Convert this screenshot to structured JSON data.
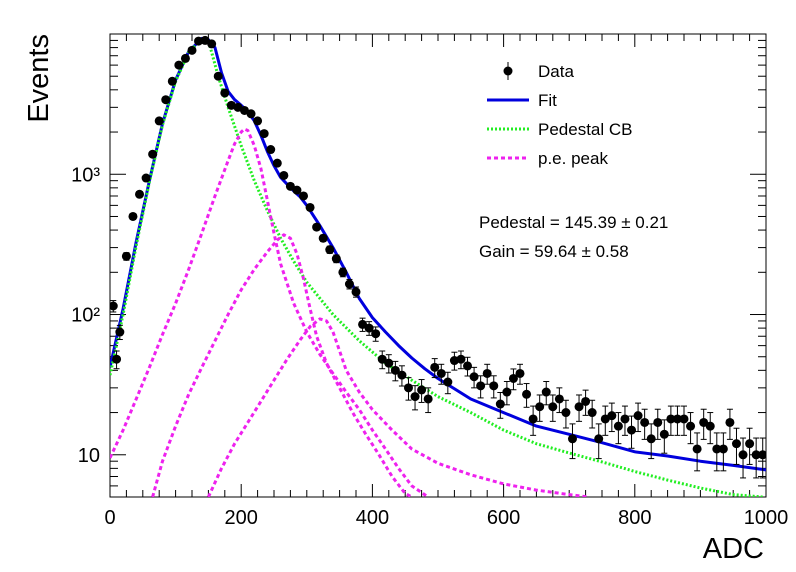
{
  "chart_data": {
    "type": "scatter",
    "xlabel": "ADC",
    "ylabel": "Events",
    "xlim": [
      0,
      1000
    ],
    "ylim": [
      5,
      10000
    ],
    "yscale": "log",
    "x_ticks": [
      "0",
      "200",
      "400",
      "600",
      "800",
      "1000"
    ],
    "y_ticks": [
      {
        "value": 10,
        "label": "10"
      },
      {
        "value": 100,
        "label": "10²"
      },
      {
        "value": 1000,
        "label": "10³"
      }
    ],
    "grid": false,
    "legend": {
      "position": "top-right",
      "entries": [
        {
          "label": "Data",
          "kind": "marker",
          "color": "#000000"
        },
        {
          "label": "Fit",
          "kind": "solid",
          "color": "#0000dd"
        },
        {
          "label": "Pedestal CB",
          "kind": "dotted",
          "color": "#22ee22"
        },
        {
          "label": "p.e. peak",
          "kind": "dashed",
          "color": "#ee22ee"
        }
      ]
    },
    "annotations": [
      "Pedestal = 145.39 ± 0.21",
      "Gain = 59.64 ± 0.58"
    ],
    "series": [
      {
        "name": "Data",
        "color": "#000000",
        "style": "markers",
        "points": [
          [
            5,
            115
          ],
          [
            10,
            48
          ],
          [
            15,
            75
          ],
          [
            25,
            260
          ],
          [
            35,
            500
          ],
          [
            45,
            720
          ],
          [
            55,
            940
          ],
          [
            65,
            1390
          ],
          [
            75,
            2400
          ],
          [
            85,
            3400
          ],
          [
            95,
            4600
          ],
          [
            105,
            6000
          ],
          [
            115,
            6700
          ],
          [
            125,
            7650
          ],
          [
            135,
            8900
          ],
          [
            145,
            9000
          ],
          [
            155,
            8500
          ],
          [
            165,
            5000
          ],
          [
            175,
            3800
          ],
          [
            185,
            3100
          ],
          [
            195,
            3000
          ],
          [
            205,
            2850
          ],
          [
            215,
            2700
          ],
          [
            225,
            2400
          ],
          [
            235,
            1950
          ],
          [
            245,
            1500
          ],
          [
            255,
            1200
          ],
          [
            265,
            980
          ],
          [
            275,
            820
          ],
          [
            285,
            770
          ],
          [
            295,
            700
          ],
          [
            305,
            580
          ],
          [
            315,
            420
          ],
          [
            325,
            350
          ],
          [
            335,
            290
          ],
          [
            345,
            250
          ],
          [
            355,
            200
          ],
          [
            365,
            165
          ],
          [
            375,
            145
          ],
          [
            385,
            85
          ],
          [
            395,
            80
          ],
          [
            405,
            73
          ],
          [
            415,
            48
          ],
          [
            425,
            45
          ],
          [
            435,
            40
          ],
          [
            445,
            37
          ],
          [
            455,
            30
          ],
          [
            465,
            26
          ],
          [
            475,
            29
          ],
          [
            485,
            25
          ],
          [
            495,
            42
          ],
          [
            505,
            38
          ],
          [
            515,
            33
          ],
          [
            525,
            47
          ],
          [
            535,
            48
          ],
          [
            545,
            43
          ],
          [
            555,
            36
          ],
          [
            565,
            31
          ],
          [
            575,
            38
          ],
          [
            585,
            31
          ],
          [
            595,
            23
          ],
          [
            605,
            28
          ],
          [
            615,
            35
          ],
          [
            625,
            38
          ],
          [
            635,
            27
          ],
          [
            645,
            18
          ],
          [
            655,
            22
          ],
          [
            665,
            28
          ],
          [
            675,
            22
          ],
          [
            685,
            25
          ],
          [
            695,
            20
          ],
          [
            705,
            13
          ],
          [
            715,
            22
          ],
          [
            725,
            24
          ],
          [
            735,
            20
          ],
          [
            745,
            13
          ],
          [
            755,
            18
          ],
          [
            765,
            19
          ],
          [
            775,
            16
          ],
          [
            785,
            18
          ],
          [
            795,
            15
          ],
          [
            805,
            19
          ],
          [
            815,
            17
          ],
          [
            825,
            13
          ],
          [
            835,
            17
          ],
          [
            845,
            14
          ],
          [
            855,
            18
          ],
          [
            865,
            18
          ],
          [
            875,
            18
          ],
          [
            885,
            16
          ],
          [
            895,
            11
          ],
          [
            905,
            17
          ],
          [
            915,
            16
          ],
          [
            925,
            11
          ],
          [
            935,
            11
          ],
          [
            945,
            17
          ],
          [
            955,
            12
          ],
          [
            965,
            10
          ],
          [
            975,
            12
          ],
          [
            985,
            10
          ],
          [
            995,
            10
          ]
        ]
      },
      {
        "name": "Fit",
        "color": "#0000dd",
        "style": "solid",
        "points": [
          [
            0,
            42
          ],
          [
            20,
            110
          ],
          [
            40,
            330
          ],
          [
            60,
            900
          ],
          [
            80,
            2300
          ],
          [
            100,
            4700
          ],
          [
            120,
            7500
          ],
          [
            140,
            9300
          ],
          [
            150,
            9100
          ],
          [
            160,
            8000
          ],
          [
            170,
            5300
          ],
          [
            180,
            3900
          ],
          [
            190,
            3400
          ],
          [
            200,
            3100
          ],
          [
            210,
            2800
          ],
          [
            220,
            2400
          ],
          [
            230,
            1900
          ],
          [
            240,
            1450
          ],
          [
            250,
            1150
          ],
          [
            260,
            950
          ],
          [
            270,
            850
          ],
          [
            280,
            760
          ],
          [
            290,
            690
          ],
          [
            300,
            600
          ],
          [
            320,
            430
          ],
          [
            340,
            300
          ],
          [
            360,
            200
          ],
          [
            380,
            130
          ],
          [
            400,
            95
          ],
          [
            420,
            75
          ],
          [
            440,
            60
          ],
          [
            460,
            49
          ],
          [
            480,
            41
          ],
          [
            500,
            35
          ],
          [
            550,
            25
          ],
          [
            600,
            20
          ],
          [
            650,
            16
          ],
          [
            700,
            14
          ],
          [
            750,
            12.2
          ],
          [
            800,
            10.5
          ],
          [
            850,
            9.8
          ],
          [
            900,
            9
          ],
          [
            950,
            8.4
          ],
          [
            1000,
            7.8
          ]
        ]
      },
      {
        "name": "Pedestal CB",
        "color": "#22ee22",
        "style": "dotted",
        "points": [
          [
            0,
            37
          ],
          [
            20,
            100
          ],
          [
            40,
            310
          ],
          [
            60,
            880
          ],
          [
            80,
            2250
          ],
          [
            100,
            4600
          ],
          [
            120,
            7400
          ],
          [
            140,
            9200
          ],
          [
            150,
            9000
          ],
          [
            165,
            5000
          ],
          [
            180,
            3000
          ],
          [
            200,
            1600
          ],
          [
            220,
            900
          ],
          [
            240,
            550
          ],
          [
            260,
            350
          ],
          [
            280,
            240
          ],
          [
            300,
            170
          ],
          [
            340,
            100
          ],
          [
            380,
            65
          ],
          [
            420,
            45
          ],
          [
            460,
            34
          ],
          [
            500,
            26
          ],
          [
            550,
            20
          ],
          [
            600,
            15
          ],
          [
            650,
            12
          ],
          [
            700,
            10.3
          ],
          [
            750,
            8.9
          ],
          [
            800,
            7.6
          ],
          [
            850,
            6.6
          ],
          [
            900,
            5.8
          ],
          [
            950,
            5.2
          ],
          [
            995,
            5
          ]
        ]
      },
      {
        "name": "p.e. peak 1",
        "color": "#ee22ee",
        "style": "dashed",
        "points": [
          [
            0,
            9.5
          ],
          [
            20,
            15
          ],
          [
            40,
            25
          ],
          [
            60,
            42
          ],
          [
            80,
            72
          ],
          [
            100,
            120
          ],
          [
            120,
            210
          ],
          [
            140,
            380
          ],
          [
            160,
            700
          ],
          [
            180,
            1250
          ],
          [
            190,
            1650
          ],
          [
            200,
            2000
          ],
          [
            205,
            2100
          ],
          [
            210,
            2050
          ],
          [
            220,
            1600
          ],
          [
            230,
            1100
          ],
          [
            240,
            650
          ],
          [
            250,
            380
          ],
          [
            260,
            230
          ],
          [
            280,
            120
          ],
          [
            300,
            75
          ],
          [
            320,
            52
          ],
          [
            340,
            38
          ],
          [
            360,
            28
          ],
          [
            380,
            21
          ],
          [
            400,
            15
          ],
          [
            420,
            11
          ],
          [
            440,
            8
          ],
          [
            460,
            6
          ],
          [
            485,
            5
          ]
        ]
      },
      {
        "name": "p.e. peak 2",
        "color": "#ee22ee",
        "style": "dashed",
        "points": [
          [
            65,
            5
          ],
          [
            80,
            9
          ],
          [
            100,
            16
          ],
          [
            120,
            27
          ],
          [
            140,
            42
          ],
          [
            160,
            65
          ],
          [
            180,
            100
          ],
          [
            200,
            150
          ],
          [
            220,
            210
          ],
          [
            240,
            280
          ],
          [
            255,
            340
          ],
          [
            265,
            370
          ],
          [
            275,
            350
          ],
          [
            285,
            270
          ],
          [
            295,
            180
          ],
          [
            305,
            110
          ],
          [
            315,
            70
          ],
          [
            330,
            45
          ],
          [
            350,
            30
          ],
          [
            370,
            20
          ],
          [
            390,
            14
          ],
          [
            410,
            10
          ],
          [
            430,
            7
          ],
          [
            450,
            5.3
          ],
          [
            460,
            5
          ]
        ]
      },
      {
        "name": "p.e. peak 3",
        "color": "#ee22ee",
        "style": "dashed",
        "points": [
          [
            150,
            5
          ],
          [
            170,
            8
          ],
          [
            190,
            12
          ],
          [
            210,
            17
          ],
          [
            230,
            24
          ],
          [
            250,
            34
          ],
          [
            270,
            48
          ],
          [
            290,
            66
          ],
          [
            305,
            82
          ],
          [
            320,
            93
          ],
          [
            330,
            90
          ],
          [
            340,
            75
          ],
          [
            350,
            55
          ],
          [
            360,
            40
          ],
          [
            380,
            28
          ],
          [
            400,
            21
          ],
          [
            430,
            15
          ],
          [
            460,
            11
          ],
          [
            500,
            8.7
          ],
          [
            550,
            7.2
          ],
          [
            600,
            6.2
          ],
          [
            650,
            5.6
          ],
          [
            700,
            5.2
          ],
          [
            730,
            5
          ]
        ]
      }
    ]
  }
}
